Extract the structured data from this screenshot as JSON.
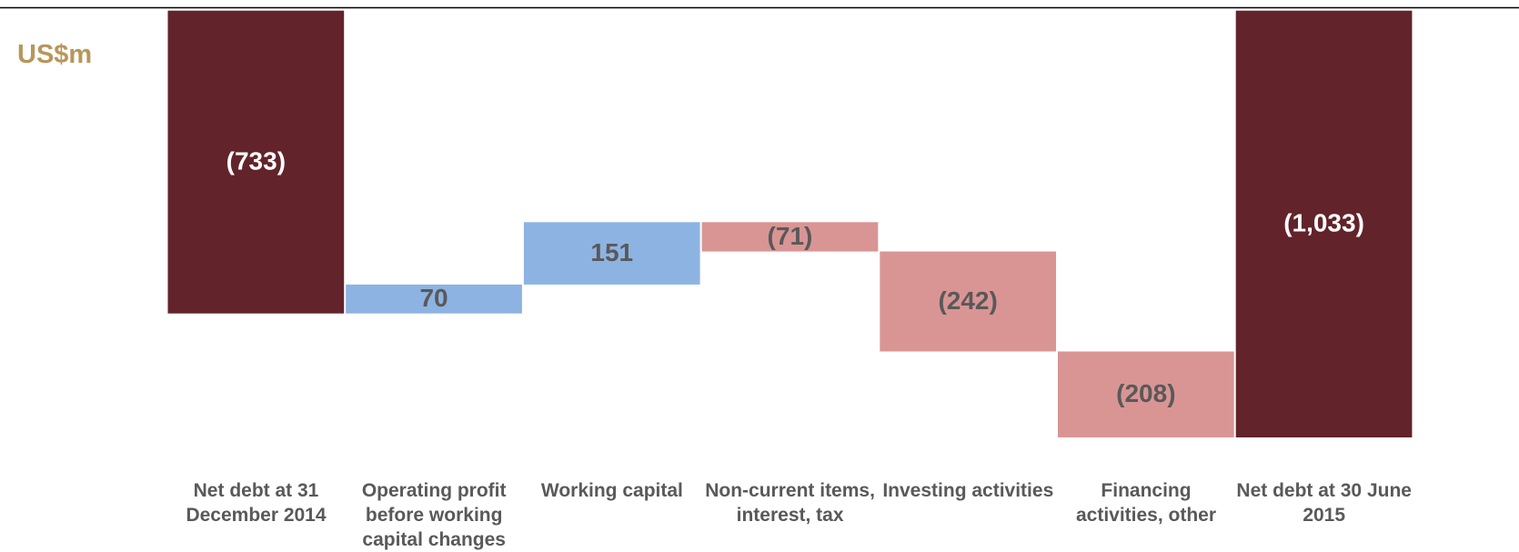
{
  "chart_data": {
    "type": "waterfall",
    "unit_label": "US$m",
    "categories": [
      "Net debt at 31 December 2014",
      "Operating profit before working capital changes",
      "Working capital",
      "Non-current items, interest, tax",
      "Investing activities",
      "Financing activities, other",
      "Net debt at 30 June 2015"
    ],
    "values": [
      -733,
      70,
      151,
      -71,
      -242,
      -208,
      -1033
    ],
    "value_labels": [
      "(733)",
      "70",
      "151",
      "(71)",
      "(242)",
      "(208)",
      "(1,033)"
    ],
    "is_total": [
      true,
      false,
      false,
      false,
      false,
      false,
      true
    ],
    "total_color": "#62232a",
    "increase_color": "#8db3e2",
    "decrease_color": "#d99594"
  }
}
